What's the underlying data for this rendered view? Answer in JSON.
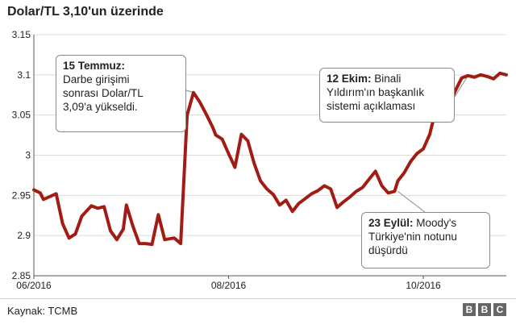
{
  "title": "Dolar/TL  3,10'un  üzerinde",
  "source": "Kaynak: TCMB",
  "logo_letters": [
    "B",
    "B",
    "C"
  ],
  "colors": {
    "line": "#a31c14",
    "grid": "#dcdcdc",
    "axis": "#555555"
  },
  "chart_data": {
    "type": "line",
    "title": "Dolar/TL  3,10'un  üzerinde",
    "xlabel": "",
    "ylabel": "",
    "ylim": [
      2.85,
      3.15
    ],
    "yticks": [
      "3.15",
      "3.1",
      "3.05",
      "3",
      "2.95",
      "2.9",
      "2.85"
    ],
    "ytick_values": [
      3.15,
      3.1,
      3.05,
      3.0,
      2.95,
      2.9,
      2.85
    ],
    "xticks": [
      "06/2016",
      "08/2016",
      "10/2016"
    ],
    "xtick_dates": [
      "2016-06-01",
      "2016-08-01",
      "2016-10-01"
    ],
    "xlim": [
      "2016-06-01",
      "2016-10-27"
    ],
    "grid": "horizontal",
    "series": [
      {
        "x": [
          "2016-06-01",
          "2016-06-03",
          "2016-06-04",
          "2016-06-08",
          "2016-06-10",
          "2016-06-12",
          "2016-06-14",
          "2016-06-16",
          "2016-06-19",
          "2016-06-21",
          "2016-06-23",
          "2016-06-25",
          "2016-06-27",
          "2016-06-29",
          "2016-06-30",
          "2016-07-02",
          "2016-07-04",
          "2016-07-06",
          "2016-07-08",
          "2016-07-10",
          "2016-07-12",
          "2016-07-15",
          "2016-07-17",
          "2016-07-19",
          "2016-07-21",
          "2016-07-23",
          "2016-07-25",
          "2016-07-27",
          "2016-07-28",
          "2016-07-30",
          "2016-08-01",
          "2016-08-03",
          "2016-08-05",
          "2016-08-07",
          "2016-08-09",
          "2016-08-11",
          "2016-08-13",
          "2016-08-15",
          "2016-08-17",
          "2016-08-19",
          "2016-08-21",
          "2016-08-23",
          "2016-08-25",
          "2016-08-27",
          "2016-08-29",
          "2016-08-31",
          "2016-09-02",
          "2016-09-04",
          "2016-09-06",
          "2016-09-08",
          "2016-09-10",
          "2016-09-12",
          "2016-09-14",
          "2016-09-16",
          "2016-09-18",
          "2016-09-20",
          "2016-09-22",
          "2016-09-23",
          "2016-09-25",
          "2016-09-27",
          "2016-09-29",
          "2016-10-01",
          "2016-10-03",
          "2016-10-05",
          "2016-10-07",
          "2016-10-09",
          "2016-10-11",
          "2016-10-13",
          "2016-10-15",
          "2016-10-17",
          "2016-10-19",
          "2016-10-21",
          "2016-10-23",
          "2016-10-25",
          "2016-10-27"
        ],
        "y": [
          2.957,
          2.953,
          2.945,
          2.952,
          2.915,
          2.897,
          2.902,
          2.924,
          2.937,
          2.934,
          2.936,
          2.906,
          2.895,
          2.908,
          2.938,
          2.912,
          2.89,
          2.89,
          2.889,
          2.926,
          2.895,
          2.897,
          2.89,
          3.05,
          3.078,
          3.066,
          3.051,
          3.035,
          3.025,
          3.02,
          3.002,
          2.985,
          3.026,
          3.018,
          2.99,
          2.968,
          2.958,
          2.951,
          2.938,
          2.944,
          2.93,
          2.94,
          2.946,
          2.952,
          2.956,
          2.962,
          2.958,
          2.935,
          2.942,
          2.948,
          2.955,
          2.96,
          2.97,
          2.98,
          2.962,
          2.953,
          2.955,
          2.968,
          2.978,
          2.992,
          3.002,
          3.008,
          3.026,
          3.058,
          3.055,
          3.062,
          3.08,
          3.096,
          3.099,
          3.097,
          3.1,
          3.098,
          3.095,
          3.102,
          3.1
        ]
      }
    ],
    "annotations": [
      {
        "bold": "15 Temmuz",
        "rest": "Darbe girişimi sonrası Dolar/TL 3,09'a yükseldi.",
        "lines": [
          "15 Temmuz:",
          "Darbe girişimi",
          "sonrası  Dolar/TL",
          "3,09'a yükseldi."
        ]
      },
      {
        "bold": "12 Ekim:",
        "rest": "Binali Yıldırım'ın  başkanlık sistemi açıklaması",
        "lines": [
          "12 Ekim: Binali",
          "Yıldırım'ın  başkanlık",
          "sistemi açıklaması"
        ]
      },
      {
        "bold": "23 Eylül:",
        "rest": "Moody's Türkiye'nin  notunu düşürdü",
        "lines": [
          "23 Eylül: Moody's",
          "Türkiye'nin  notunu",
          "düşürdü"
        ]
      }
    ]
  }
}
